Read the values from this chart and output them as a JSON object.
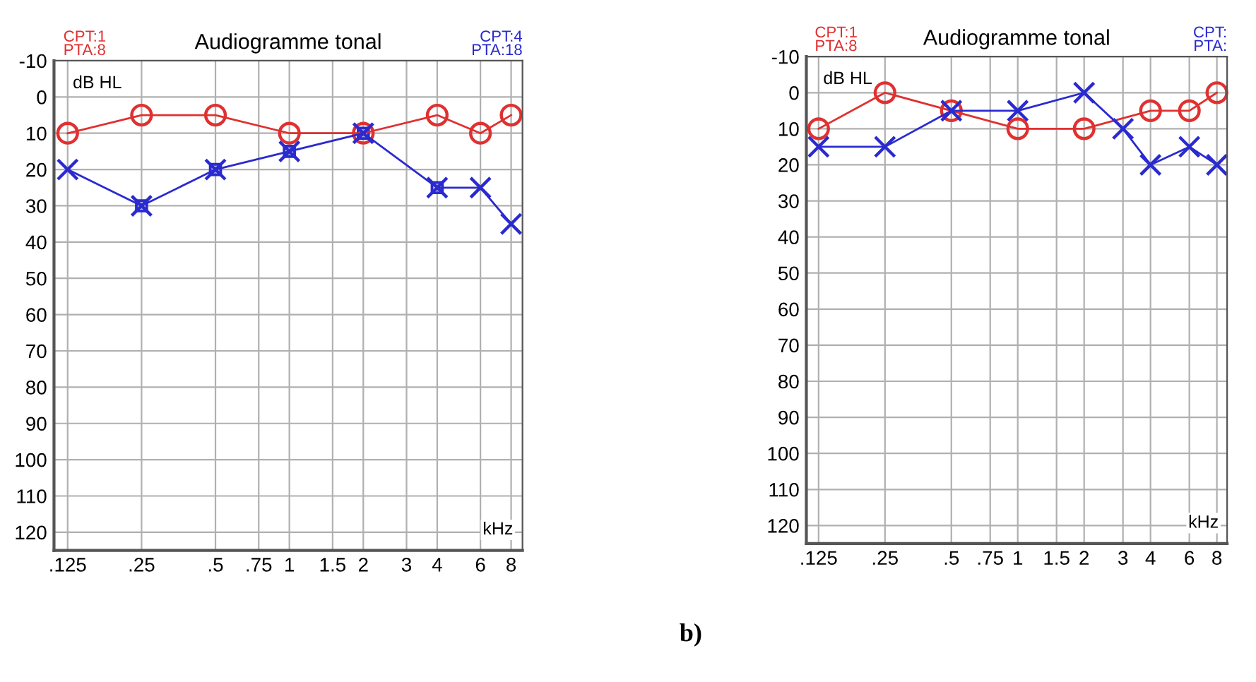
{
  "chart_data": [
    {
      "type": "line",
      "title": "Audiogramme tonal",
      "log": "x",
      "xlim": [
        0.11,
        8.9
      ],
      "ylim": [
        125,
        -10
      ],
      "xticks": [
        {
          "value": 0.125,
          "label": ".125"
        },
        {
          "value": 0.25,
          "label": ".25"
        },
        {
          "value": 0.5,
          "label": ".5"
        },
        {
          "value": 0.75,
          "label": ".75"
        },
        1,
        {
          "value": 1.5,
          "label": "1.5"
        },
        2,
        3,
        4,
        6,
        8
      ],
      "yticks": [
        -10,
        0,
        10,
        20,
        30,
        40,
        50,
        60,
        70,
        80,
        90,
        100,
        110,
        120
      ],
      "grid": true,
      "line_style": "solid",
      "series": [
        {
          "color": "#e03030",
          "marker": "circle",
          "x": [
            0.125,
            0.25,
            0.5,
            1,
            2,
            4,
            6,
            8
          ],
          "values": [
            10,
            5,
            5,
            10,
            10,
            5,
            10,
            5
          ]
        },
        {
          "color": "#2a2ad0",
          "marker": "cross",
          "x": [
            0.125,
            0.25,
            0.5,
            1,
            2,
            4,
            6,
            8
          ],
          "values": [
            20,
            30,
            20,
            15,
            10,
            25,
            25,
            35
          ]
        },
        {
          "type": "scatter",
          "color": "#2a2ad0",
          "marker": "square",
          "x": [
            0.25,
            0.5,
            1,
            2,
            4
          ],
          "values": [
            30,
            20,
            15,
            10,
            25
          ]
        }
      ],
      "annotations": [
        "CPT:1\nPTA:8",
        "CPT:4\nPTA:18",
        "dB HL",
        "kHz",
        "b)"
      ]
    },
    {
      "type": "line",
      "title": "Audiogramme tonal",
      "log": "x",
      "xlim": [
        0.11,
        8.9
      ],
      "ylim": [
        125,
        -10
      ],
      "xticks": [
        {
          "value": 0.125,
          "label": ".125"
        },
        {
          "value": 0.25,
          "label": ".25"
        },
        {
          "value": 0.5,
          "label": ".5"
        },
        {
          "value": 0.75,
          "label": ".75"
        },
        1,
        {
          "value": 1.5,
          "label": "1.5"
        },
        2,
        3,
        4,
        6,
        8
      ],
      "yticks": [
        -10,
        0,
        10,
        20,
        30,
        40,
        50,
        60,
        70,
        80,
        90,
        100,
        110,
        120
      ],
      "grid": true,
      "line_style": "solid",
      "series": [
        {
          "color": "#e03030",
          "marker": "circle",
          "x": [
            0.125,
            0.25,
            0.5,
            1,
            2,
            4,
            6,
            8
          ],
          "values": [
            10,
            0,
            5,
            10,
            10,
            5,
            5,
            0
          ]
        },
        {
          "color": "#2a2ad0",
          "marker": "cross",
          "x": [
            0.125,
            0.25,
            0.5,
            1,
            2,
            3,
            4,
            6,
            8
          ],
          "values": [
            15,
            15,
            5,
            5,
            0,
            10,
            20,
            15,
            20
          ]
        }
      ],
      "annotations": [
        "CPT:1\nPTA:8",
        "CPT:\nPTA:",
        "dB HL",
        "kHz"
      ]
    }
  ]
}
